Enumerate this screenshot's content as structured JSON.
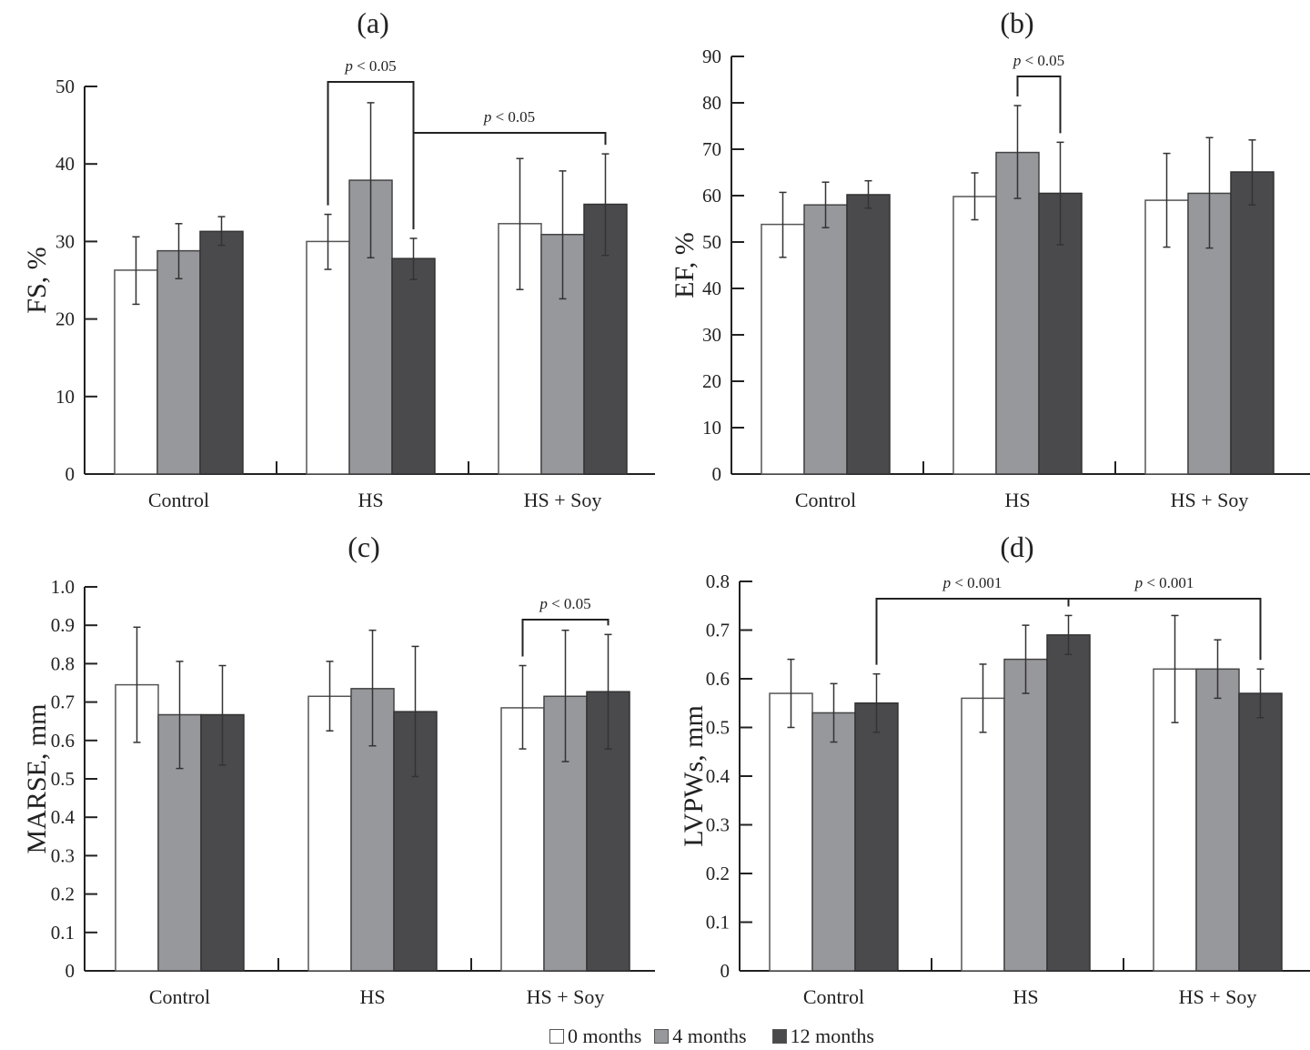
{
  "legend": {
    "items": [
      {
        "label": "0 months",
        "color": "#ffffff"
      },
      {
        "label": "4 months",
        "color": "#97989c"
      },
      {
        "label": "12 months",
        "color": "#4a4a4d"
      }
    ]
  },
  "chart_data": [
    {
      "type": "bar",
      "title": "(a)",
      "xlabel": "",
      "ylabel": "FS, %",
      "categories": [
        "Control",
        "HS",
        "HS + Soy"
      ],
      "ylim": [
        0,
        50
      ],
      "yticks": [
        "0",
        "10",
        "20",
        "30",
        "40",
        "50"
      ],
      "yticks_values": [
        0,
        10,
        20,
        30,
        40,
        50
      ],
      "series": [
        {
          "name": "0 months",
          "values": [
            26.3,
            30.0,
            32.3
          ],
          "err_low": [
            21.9,
            26.4,
            23.8
          ],
          "err_high": [
            30.6,
            33.5,
            40.7
          ]
        },
        {
          "name": "4 months",
          "values": [
            28.8,
            37.9,
            30.9
          ],
          "err_low": [
            25.2,
            27.9,
            22.6
          ],
          "err_high": [
            32.3,
            47.9,
            39.1
          ]
        },
        {
          "name": "12 months",
          "values": [
            31.3,
            27.8,
            34.8
          ],
          "err_low": [
            29.5,
            25.1,
            28.2
          ],
          "err_high": [
            33.2,
            30.4,
            41.3
          ]
        }
      ],
      "annotations": [
        {
          "text": "p < 0.05",
          "from": [
            "HS",
            "0 months"
          ],
          "to": [
            "HS",
            "12 months"
          ]
        },
        {
          "text": "p < 0.05",
          "from": [
            "HS",
            "12 months"
          ],
          "to": [
            "HS + Soy",
            "12 months"
          ]
        }
      ]
    },
    {
      "type": "bar",
      "title": "(b)",
      "xlabel": "",
      "ylabel": "EF, %",
      "categories": [
        "Control",
        "HS",
        "HS + Soy"
      ],
      "ylim": [
        0,
        90
      ],
      "yticks": [
        "0",
        "10",
        "20",
        "30",
        "40",
        "50",
        "60",
        "70",
        "80",
        "90"
      ],
      "yticks_values": [
        0,
        10,
        20,
        30,
        40,
        50,
        60,
        70,
        80,
        90
      ],
      "series": [
        {
          "name": "0 months",
          "values": [
            53.8,
            59.8,
            59.0
          ],
          "err_low": [
            46.7,
            54.8,
            48.9
          ],
          "err_high": [
            60.7,
            64.9,
            69.1
          ]
        },
        {
          "name": "4 months",
          "values": [
            58.0,
            69.3,
            60.5
          ],
          "err_low": [
            53.1,
            59.4,
            48.7
          ],
          "err_high": [
            62.9,
            79.4,
            72.5
          ]
        },
        {
          "name": "12 months",
          "values": [
            60.2,
            60.5,
            65.1
          ],
          "err_low": [
            57.3,
            49.4,
            58.0
          ],
          "err_high": [
            63.2,
            71.5,
            72.0
          ]
        }
      ],
      "annotations": [
        {
          "text": "p < 0.05",
          "from": [
            "HS",
            "4 months"
          ],
          "to": [
            "HS",
            "12 months"
          ]
        }
      ]
    },
    {
      "type": "bar",
      "title": "(c)",
      "xlabel": "",
      "ylabel": "MARSE, mm",
      "categories": [
        "Control",
        "HS",
        "HS + Soy"
      ],
      "ylim": [
        0,
        1.0
      ],
      "yticks": [
        "0",
        "0.1",
        "0.2",
        "0.3",
        "0.4",
        "0.5",
        "0.6",
        "0.7",
        "0.8",
        "0.9",
        "1.0"
      ],
      "yticks_values": [
        0,
        0.1,
        0.2,
        0.3,
        0.4,
        0.5,
        0.6,
        0.7,
        0.8,
        0.9,
        1.0
      ],
      "series": [
        {
          "name": "0 months",
          "values": [
            0.745,
            0.715,
            0.685
          ],
          "err_low": [
            0.595,
            0.625,
            0.578
          ],
          "err_high": [
            0.895,
            0.806,
            0.795
          ]
        },
        {
          "name": "4 months",
          "values": [
            0.667,
            0.735,
            0.715
          ],
          "err_low": [
            0.527,
            0.586,
            0.545
          ],
          "err_high": [
            0.806,
            0.887,
            0.887
          ]
        },
        {
          "name": "12 months",
          "values": [
            0.667,
            0.675,
            0.727
          ],
          "err_low": [
            0.536,
            0.506,
            0.578
          ],
          "err_high": [
            0.795,
            0.845,
            0.876
          ]
        }
      ],
      "annotations": [
        {
          "text": "p < 0.05",
          "from": [
            "HS + Soy",
            "0 months"
          ],
          "to": [
            "HS + Soy",
            "12 months"
          ]
        }
      ]
    },
    {
      "type": "bar",
      "title": "(d)",
      "xlabel": "",
      "ylabel": "LVPWs, mm",
      "categories": [
        "Control",
        "HS",
        "HS + Soy"
      ],
      "ylim": [
        0,
        0.8
      ],
      "yticks": [
        "0",
        "0.1",
        "0.2",
        "0.3",
        "0.4",
        "0.5",
        "0.6",
        "0.7",
        "0.8"
      ],
      "yticks_values": [
        0,
        0.1,
        0.2,
        0.3,
        0.4,
        0.5,
        0.6,
        0.7,
        0.8
      ],
      "series": [
        {
          "name": "0 months",
          "values": [
            0.57,
            0.56,
            0.62
          ],
          "err_low": [
            0.5,
            0.49,
            0.51
          ],
          "err_high": [
            0.64,
            0.63,
            0.73
          ]
        },
        {
          "name": "4 months",
          "values": [
            0.53,
            0.64,
            0.62
          ],
          "err_low": [
            0.47,
            0.57,
            0.56
          ],
          "err_high": [
            0.59,
            0.71,
            0.68
          ]
        },
        {
          "name": "12 months",
          "values": [
            0.55,
            0.69,
            0.57
          ],
          "err_low": [
            0.49,
            0.65,
            0.52
          ],
          "err_high": [
            0.61,
            0.73,
            0.62
          ]
        }
      ],
      "annotations": [
        {
          "text": "p < 0.001",
          "from": [
            "Control",
            "12 months"
          ],
          "to": [
            "HS",
            "12 months"
          ]
        },
        {
          "text": "p < 0.001",
          "from": [
            "HS",
            "12 months"
          ],
          "to": [
            "HS + Soy",
            "12 months"
          ]
        }
      ]
    }
  ]
}
